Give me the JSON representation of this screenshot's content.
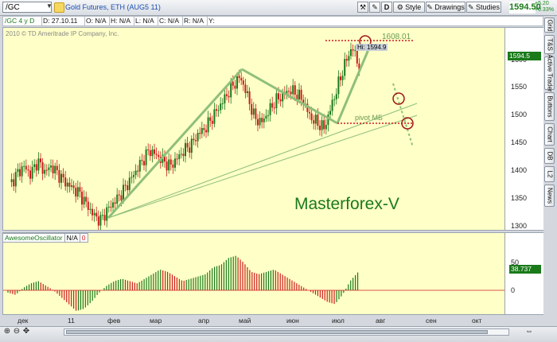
{
  "toolbar": {
    "symbol": "/GC",
    "description": "Gold Futures, ETH (AUG5 11)",
    "btn_d": "D",
    "btn_style": "Style",
    "btn_drawings": "Drawings",
    "btn_studies": "Studies",
    "last_price": "1594.50",
    "change_abs": "+5.20",
    "change_pct": "+0.33%"
  },
  "infobar": {
    "period": "/GC 4 y D",
    "date": "D: 27.10.11",
    "open": "O: N/A",
    "high": "H: N/A",
    "low": "L: N/A",
    "close": "C: N/A",
    "range": "R: N/A",
    "y": "Y:"
  },
  "chart": {
    "copyright": "2010 © TD Ameritrade IP Company, Inc.",
    "watermark": "Masterforex-V",
    "hi_label": "Hi: 1594.9",
    "level_label": "1608.01",
    "pivot_label": "pivot МБ",
    "price_tag": "1594.5",
    "y_ticks": [
      "1650",
      "1600",
      "1550",
      "1500",
      "1450",
      "1400",
      "1350",
      "1300"
    ],
    "x_ticks": [
      "дек",
      "11",
      "фев",
      "мар",
      "апр",
      "май",
      "июн",
      "июл",
      "авг",
      "сен",
      "окт"
    ]
  },
  "oscillator": {
    "name": "AwesomeOscillator",
    "value_na": "N/A",
    "param": "0",
    "tag": "38.737",
    "y_ticks": [
      "50",
      "0"
    ]
  },
  "side_tabs": [
    "Grid",
    "T&S",
    "Active Trader",
    "Buttons",
    "Chart",
    "DB",
    "L2",
    "News"
  ],
  "colors": {
    "up": "#1a7a1a",
    "down": "#cc1c1c",
    "bg": "#ffffc8",
    "trendline": "#8fbf7a",
    "level": "#cc1c1c"
  },
  "chart_data": {
    "type": "candlestick",
    "ylim": [
      1290,
      1665
    ],
    "ohlc_close_approx": [
      1375,
      1395,
      1410,
      1395,
      1420,
      1400,
      1410,
      1395,
      1380,
      1370,
      1360,
      1340,
      1320,
      1310,
      1330,
      1345,
      1360,
      1380,
      1400,
      1420,
      1440,
      1430,
      1420,
      1410,
      1425,
      1440,
      1450,
      1470,
      1480,
      1500,
      1520,
      1540,
      1560,
      1575,
      1540,
      1500,
      1490,
      1510,
      1530,
      1540,
      1550,
      1545,
      1530,
      1500,
      1490,
      1480,
      1520,
      1560,
      1600,
      1630,
      1594.5
    ],
    "oscillator_values": [
      -5,
      -10,
      5,
      15,
      20,
      10,
      0,
      -15,
      -30,
      -45,
      -40,
      -25,
      -5,
      10,
      20,
      25,
      20,
      15,
      25,
      35,
      45,
      40,
      30,
      20,
      25,
      30,
      35,
      50,
      55,
      70,
      75,
      60,
      40,
      35,
      40,
      45,
      35,
      25,
      15,
      5,
      -5,
      -15,
      -25,
      -30,
      -10,
      20,
      38.7
    ]
  }
}
